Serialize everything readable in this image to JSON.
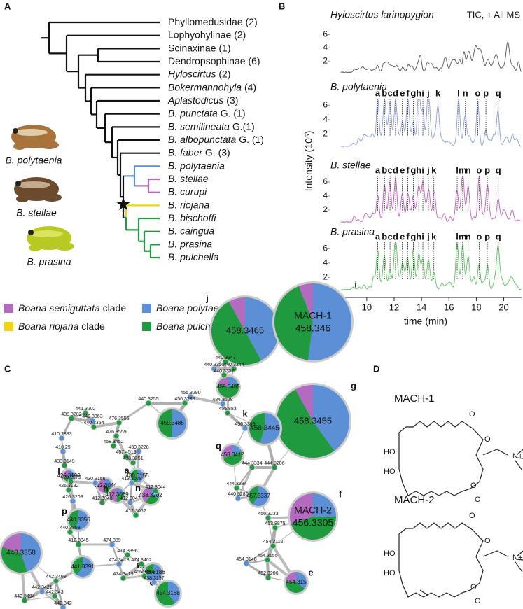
{
  "panels": {
    "a": "A",
    "b": "B",
    "c": "C",
    "d": "D"
  },
  "tree": {
    "taxa": [
      {
        "name": "Phyllomedusidae",
        "note": "(2)",
        "italic": false
      },
      {
        "name": "Lophyohylinae",
        "note": "(2)",
        "italic": false
      },
      {
        "name": "Scinaxinae",
        "note": "(1)",
        "italic": false
      },
      {
        "name": "Dendropsophinae",
        "note": "(6)",
        "italic": false
      },
      {
        "name": "Hyloscirtus",
        "note": "(2)",
        "italic": true
      },
      {
        "name": "Bokermannohyla",
        "note": "(4)",
        "italic": true
      },
      {
        "name": "Aplastodicus",
        "note": "(3)",
        "italic": true
      },
      {
        "name": "B. punctata",
        "note": "G. (1)",
        "italic": true
      },
      {
        "name": "B. semilineata",
        "note": "G.(1)",
        "italic": true
      },
      {
        "name": "B. albopunctata",
        "note": "G. (1)",
        "italic": true
      },
      {
        "name": "B. faber",
        "note": "G. (3)",
        "italic": true
      },
      {
        "name": "B. polytaenia",
        "note": null,
        "italic": true
      },
      {
        "name": "B. stellae",
        "note": null,
        "italic": true
      },
      {
        "name": "B. curupi",
        "note": null,
        "italic": true
      },
      {
        "name": "B. riojana",
        "note": null,
        "italic": true
      },
      {
        "name": "B. bischoffi",
        "note": null,
        "italic": true
      },
      {
        "name": "B. caingua",
        "note": null,
        "italic": true
      },
      {
        "name": "B. prasina",
        "note": null,
        "italic": true
      },
      {
        "name": "B. pulchella",
        "note": null,
        "italic": true
      }
    ],
    "frogs": [
      "B. polytaenia",
      "B. stellae",
      "B. prasina"
    ]
  },
  "legend": [
    {
      "name": "Boana semiguttata",
      "suffix": "clade",
      "color": "#b26bbf"
    },
    {
      "name": "Boana polytaenia",
      "suffix": "clade",
      "color": "#5b8fd6"
    },
    {
      "name": "Boana riojana",
      "suffix": "clade",
      "color": "#f2d30f"
    },
    {
      "name": "Boana pulchella",
      "suffix": "clade",
      "color": "#1f9a3f"
    }
  ],
  "chart_data": {
    "type": "line",
    "xlabel": "time (min)",
    "ylabel": "Intensity (10⁵)",
    "xlim": [
      7.3,
      21.3
    ],
    "xticks": [
      8,
      10,
      12,
      14,
      16,
      18,
      20
    ],
    "ylim": [
      0,
      7
    ],
    "yticks": [
      2,
      4,
      6
    ],
    "traces": [
      {
        "name": "Hyloscirtus larinopygion",
        "note": "TIC, + All MS",
        "color": "#555555",
        "peaks": []
      },
      {
        "name": "B. polytaenia",
        "note": null,
        "color": "#8c9de0",
        "peaks": [
          {
            "label": "a",
            "time": 10.8
          },
          {
            "label": "b",
            "time": 11.3
          },
          {
            "label": "c",
            "time": 11.7
          },
          {
            "label": "d",
            "time": 12.1
          },
          {
            "label": "e",
            "time": 12.6
          },
          {
            "label": "f",
            "time": 13.0
          },
          {
            "label": "g",
            "time": 13.4
          },
          {
            "label": "h",
            "time": 13.8
          },
          {
            "label": "i",
            "time": 14.1
          },
          {
            "label": "j",
            "time": 14.5
          },
          {
            "label": "k",
            "time": 15.2
          },
          {
            "label": "l",
            "time": 16.7
          },
          {
            "label": "n",
            "time": 17.2
          },
          {
            "label": "o",
            "time": 18.1
          },
          {
            "label": "p",
            "time": 18.7
          },
          {
            "label": "q",
            "time": 19.6
          }
        ]
      },
      {
        "name": "B. stellae",
        "note": null,
        "color": "#c45fc0",
        "peaks": [
          {
            "label": "a",
            "time": 10.8
          },
          {
            "label": "b",
            "time": 11.3
          },
          {
            "label": "c",
            "time": 11.7
          },
          {
            "label": "d",
            "time": 12.1
          },
          {
            "label": "e",
            "time": 12.6
          },
          {
            "label": "f",
            "time": 13.0
          },
          {
            "label": "g",
            "time": 13.4
          },
          {
            "label": "h",
            "time": 13.8
          },
          {
            "label": "i",
            "time": 14.1
          },
          {
            "label": "j",
            "time": 14.5
          },
          {
            "label": "k",
            "time": 14.9
          },
          {
            "label": "l",
            "time": 16.6
          },
          {
            "label": "m",
            "time": 17.0
          },
          {
            "label": "n",
            "time": 17.4
          },
          {
            "label": "o",
            "time": 18.2
          },
          {
            "label": "p",
            "time": 18.8
          },
          {
            "label": "q",
            "time": 19.6
          }
        ]
      },
      {
        "name": "B. prasina",
        "note": null,
        "color": "#5cc35c",
        "peaks": [
          {
            "label": "a",
            "time": 10.8
          },
          {
            "label": "b",
            "time": 11.3
          },
          {
            "label": "c",
            "time": 11.7
          },
          {
            "label": "d",
            "time": 12.1
          },
          {
            "label": "e",
            "time": 12.6
          },
          {
            "label": "f",
            "time": 13.0
          },
          {
            "label": "g",
            "time": 13.4
          },
          {
            "label": "h",
            "time": 13.8
          },
          {
            "label": "i",
            "time": 14.1
          },
          {
            "label": "j",
            "time": 14.5
          },
          {
            "label": "k",
            "time": 14.9
          },
          {
            "label": "l",
            "time": 16.6
          },
          {
            "label": "m",
            "time": 17.0
          },
          {
            "label": "n",
            "time": 17.4
          },
          {
            "label": "o",
            "time": 18.2
          },
          {
            "label": "p",
            "time": 18.8
          },
          {
            "label": "q",
            "time": 19.6
          }
        ]
      }
    ]
  },
  "network": {
    "nodes": [
      {
        "label": "458.3465",
        "tag": "j",
        "shares": [
          8,
          42,
          50
        ]
      },
      {
        "label": "458.346",
        "name": "MACH-1",
        "tag": "i",
        "shares": [
          6,
          52,
          42
        ]
      },
      {
        "label": "458.3455",
        "tag": "g",
        "shares": [
          8,
          40,
          52
        ]
      },
      {
        "label": "456.3305",
        "name": "MACH-2",
        "tag": "f",
        "shares": [
          30,
          25,
          45
        ]
      },
      {
        "label": "440.3358",
        "tag": "o",
        "shares": [
          20,
          45,
          35
        ]
      },
      {
        "label": "458.3445",
        "tag": "k",
        "shares": [
          0,
          55,
          45
        ]
      },
      {
        "label": "459.3486",
        "tag": null,
        "shares": [
          0,
          50,
          50
        ]
      },
      {
        "label": "459.3485",
        "tag": null,
        "shares": [
          20,
          20,
          60
        ]
      },
      {
        "label": "458.3412",
        "tag": "q",
        "shares": [
          30,
          20,
          50
        ]
      },
      {
        "label": "457.3337",
        "tag": null,
        "shares": [
          0,
          60,
          40
        ]
      },
      {
        "label": "454.315",
        "tag": "e",
        "shares": [
          25,
          35,
          40
        ]
      },
      {
        "label": "454.3168",
        "tag": "c",
        "shares": [
          0,
          40,
          60
        ]
      },
      {
        "label": "438.3186",
        "tag": "m",
        "shares": [
          0,
          70,
          30
        ]
      },
      {
        "label": "438.3202",
        "tag": "n",
        "shares": [
          40,
          30,
          30
        ]
      },
      {
        "label": "440.3356",
        "tag": "p",
        "shares": [
          0,
          55,
          45
        ]
      },
      {
        "label": "441.3391",
        "tag": null,
        "shares": [
          0,
          60,
          40
        ]
      },
      {
        "label": "412.3044",
        "tag": null,
        "shares": [
          50,
          30,
          20
        ]
      },
      {
        "label": "412.3069",
        "tag": "h",
        "shares": [
          50,
          20,
          30
        ]
      },
      {
        "label": "426.3199",
        "tag": "l",
        "shares": [
          30,
          40,
          30
        ]
      },
      {
        "label": "430.3155",
        "tag": "a",
        "shares": [
          0,
          50,
          50
        ]
      },
      {
        "label": "440.3247"
      },
      {
        "label": "440.3353"
      },
      {
        "label": "440.3344"
      },
      {
        "label": "440.3357"
      },
      {
        "label": "456.3290"
      },
      {
        "label": "456.3283"
      },
      {
        "label": "440.3255"
      },
      {
        "label": "484.3628"
      },
      {
        "label": "441.3202"
      },
      {
        "label": "438.3202"
      },
      {
        "label": "440.3363"
      },
      {
        "label": "440.3354"
      },
      {
        "label": "476.3555"
      },
      {
        "label": "410.2883"
      },
      {
        "label": "476.3559"
      },
      {
        "label": "458.3452"
      },
      {
        "label": "439.3228"
      },
      {
        "label": "467.4513"
      },
      {
        "label": "438.3251"
      },
      {
        "label": "410.29"
      },
      {
        "label": "430.3149"
      },
      {
        "label": "428.2979"
      },
      {
        "label": "430.3156"
      },
      {
        "label": "412.3044"
      },
      {
        "label": "412.3048"
      },
      {
        "label": "412.3047"
      },
      {
        "label": "412.3062"
      },
      {
        "label": "455.883"
      },
      {
        "label": "456.3399"
      },
      {
        "label": "444.3334"
      },
      {
        "label": "444.3206"
      },
      {
        "label": "474.389"
      },
      {
        "label": "444.3284"
      },
      {
        "label": "474.3396"
      },
      {
        "label": "474.3418"
      },
      {
        "label": "474.3402"
      },
      {
        "label": "474.3419"
      },
      {
        "label": "440.3280"
      },
      {
        "label": "453.8875"
      },
      {
        "label": "456.3233"
      },
      {
        "label": "454.3148"
      },
      {
        "label": "454.3155"
      },
      {
        "label": "452.3206"
      },
      {
        "label": "442.3421"
      },
      {
        "label": "442.3409"
      },
      {
        "label": "442.343"
      },
      {
        "label": "442.342"
      },
      {
        "label": "442.3494"
      },
      {
        "label": "426.3182"
      },
      {
        "label": "426.3203"
      },
      {
        "label": "440.3308"
      },
      {
        "label": "412.3045"
      },
      {
        "label": "413.3078"
      },
      {
        "label": "454.3112"
      },
      {
        "label": "456.3194"
      },
      {
        "label": "438.3197"
      }
    ]
  },
  "structures": [
    {
      "name": "MACH-1",
      "atoms": [
        "HO",
        "HO",
        "O",
        "O",
        "O",
        "O",
        "N+"
      ]
    },
    {
      "name": "MACH-2",
      "atoms": [
        "HO",
        "HO",
        "O",
        "O",
        "O",
        "O",
        "N+"
      ]
    }
  ]
}
